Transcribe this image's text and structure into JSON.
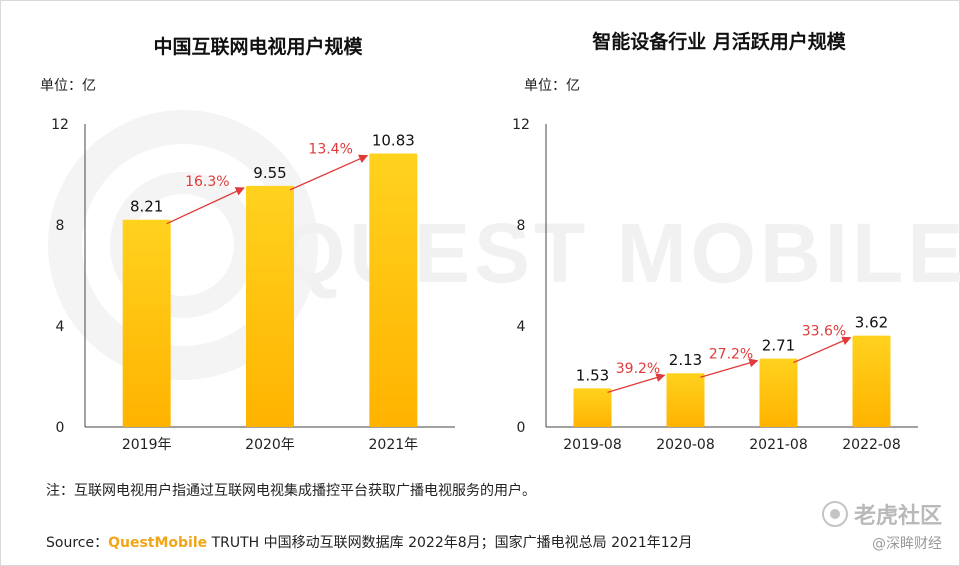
{
  "chart_data": [
    {
      "type": "bar",
      "title": "中国互联网电视用户规模",
      "unit_label": "单位：亿",
      "categories": [
        "2019年",
        "2020年",
        "2021年"
      ],
      "values": [
        8.21,
        9.55,
        10.83
      ],
      "value_labels": [
        "8.21",
        "9.55",
        "10.83"
      ],
      "growth_labels": [
        "16.3%",
        "13.4%"
      ],
      "ylim": [
        0,
        12
      ],
      "yticks": [
        "0",
        "4",
        "8",
        "12"
      ],
      "grid": false,
      "bar_color": "#FFC000",
      "arrow_color": "#E03A3A"
    },
    {
      "type": "bar",
      "title": "智能设备行业 月活跃用户规模",
      "unit_label": "单位：亿",
      "categories": [
        "2019-08",
        "2020-08",
        "2021-08",
        "2022-08"
      ],
      "values": [
        1.53,
        2.13,
        2.71,
        3.62
      ],
      "value_labels": [
        "1.53",
        "2.13",
        "2.71",
        "3.62"
      ],
      "growth_labels": [
        "39.2%",
        "27.2%",
        "33.6%"
      ],
      "ylim": [
        0,
        12
      ],
      "yticks": [
        "0",
        "4",
        "8",
        "12"
      ],
      "grid": false,
      "bar_color": "#FFC000",
      "arrow_color": "#E03A3A"
    }
  ],
  "note": "注：互联网电视用户指通过互联网电视集成播控平台获取广播电视服务的用户。",
  "source": {
    "prefix": "Source：",
    "brand": "QuestMobile",
    "text": " TRUTH 中国移动互联网数据库 2022年8月；国家广播电视总局 2021年12月"
  },
  "watermark": "QUEST MOBILE",
  "stamp": {
    "main": "老虎社区",
    "sub": "@深眸财经"
  }
}
